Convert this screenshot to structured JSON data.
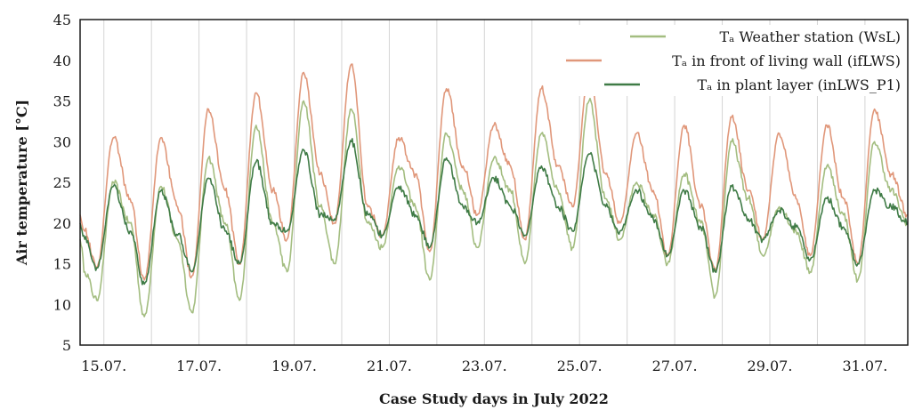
{
  "chart_data": {
    "type": "line",
    "title": "",
    "xlabel": "Case Study days in July 2022",
    "ylabel": "Air temperature [°C]",
    "ylim": [
      5,
      45
    ],
    "yticks": [
      5,
      10,
      15,
      20,
      25,
      30,
      35,
      40,
      45
    ],
    "xlim": [
      14.5,
      31.9
    ],
    "xticks": [
      {
        "value": 15,
        "label": "15.07."
      },
      {
        "value": 17,
        "label": "17.07."
      },
      {
        "value": 19,
        "label": "19.07."
      },
      {
        "value": 21,
        "label": "21.07."
      },
      {
        "value": 23,
        "label": "23.07."
      },
      {
        "value": 25,
        "label": "25.07."
      },
      {
        "value": 27,
        "label": "27.07."
      },
      {
        "value": 29,
        "label": "29.07."
      },
      {
        "value": 31,
        "label": "31.07."
      }
    ],
    "grid": "vertical",
    "legend_position": "top-right",
    "series": [
      {
        "name": "Tₐ Weather station (WsL)",
        "color": "#a3bd80",
        "x": [
          14.5,
          14.6,
          14.85,
          15.2,
          15.55,
          15.85,
          16.2,
          16.55,
          16.85,
          17.2,
          17.55,
          17.85,
          18.2,
          18.55,
          18.85,
          19.2,
          19.55,
          19.85,
          20.2,
          20.55,
          20.85,
          21.2,
          21.55,
          21.85,
          22.2,
          22.55,
          22.85,
          23.2,
          23.55,
          23.85,
          24.2,
          24.55,
          24.85,
          25.2,
          25.55,
          25.85,
          26.2,
          26.55,
          26.85,
          27.2,
          27.55,
          27.85,
          28.2,
          28.55,
          28.85,
          29.2,
          29.55,
          29.85,
          30.2,
          30.55,
          30.85,
          31.2,
          31.55,
          31.9
        ],
        "y": [
          18,
          14,
          10.5,
          25,
          20,
          8.5,
          24.5,
          18,
          9,
          28,
          20,
          10.5,
          32,
          20,
          14,
          35,
          22,
          15,
          34,
          20,
          17,
          27,
          22,
          13,
          31,
          24,
          17,
          28,
          24,
          15,
          31,
          24,
          17,
          35,
          23,
          18,
          25,
          21,
          15,
          26,
          20,
          11,
          30,
          23,
          16,
          22,
          19,
          14,
          27,
          21,
          13,
          30,
          24,
          20
        ]
      },
      {
        "name": "Tₐ in front of living wall (ifLWS)",
        "color": "#e0977a",
        "x": [
          14.5,
          14.6,
          14.85,
          15.2,
          15.55,
          15.85,
          16.2,
          16.55,
          16.85,
          17.2,
          17.55,
          17.85,
          18.2,
          18.55,
          18.85,
          19.2,
          19.55,
          19.85,
          20.2,
          20.55,
          20.85,
          21.2,
          21.55,
          21.85,
          22.2,
          22.55,
          22.85,
          23.2,
          23.55,
          23.85,
          24.2,
          24.55,
          24.85,
          25.2,
          25.55,
          25.85,
          26.2,
          26.55,
          26.85,
          27.2,
          27.55,
          27.85,
          28.2,
          28.55,
          28.85,
          29.2,
          29.55,
          29.85,
          30.2,
          30.55,
          30.85,
          31.2,
          31.55,
          31.9
        ],
        "y": [
          21,
          19,
          14.5,
          30.5,
          23,
          13,
          30.5,
          22,
          13.5,
          34,
          24,
          15,
          36,
          24,
          18,
          38.5,
          26,
          20,
          39.5,
          22,
          18.5,
          30.5,
          26,
          16.5,
          36.5,
          27,
          21,
          32,
          27,
          18,
          36.5,
          27,
          22,
          38.5,
          26,
          20,
          31,
          24,
          16,
          32,
          22,
          14,
          33,
          24,
          18,
          31,
          23,
          16,
          32,
          23,
          15,
          34,
          26,
          21
        ]
      },
      {
        "name": "Tₐ in plant layer (inLWS_P1)",
        "color": "#3f7b46",
        "x": [
          14.5,
          14.6,
          14.85,
          15.2,
          15.55,
          15.85,
          16.2,
          16.55,
          16.85,
          17.2,
          17.55,
          17.85,
          18.2,
          18.55,
          18.85,
          19.2,
          19.55,
          19.85,
          20.2,
          20.55,
          20.85,
          21.2,
          21.55,
          21.85,
          22.2,
          22.55,
          22.85,
          23.2,
          23.55,
          23.85,
          24.2,
          24.55,
          24.85,
          25.2,
          25.55,
          25.85,
          26.2,
          26.55,
          26.85,
          27.2,
          27.55,
          27.85,
          28.2,
          28.55,
          28.85,
          29.2,
          29.55,
          29.85,
          30.2,
          30.55,
          30.85,
          31.2,
          31.55,
          31.9
        ],
        "y": [
          20,
          18,
          14.5,
          24.5,
          19,
          12.5,
          24,
          18.5,
          14,
          25.5,
          19,
          15,
          27.5,
          20,
          19,
          29,
          21,
          20.5,
          30,
          21,
          18.5,
          24.5,
          21,
          17,
          28,
          22,
          20,
          25.5,
          22,
          18.5,
          27,
          22,
          19,
          28.5,
          22,
          19,
          24,
          20.5,
          16,
          24,
          19.5,
          14,
          24.5,
          20.5,
          18,
          21.5,
          19.5,
          15.5,
          23,
          19.5,
          15,
          24,
          22,
          20
        ]
      }
    ]
  }
}
